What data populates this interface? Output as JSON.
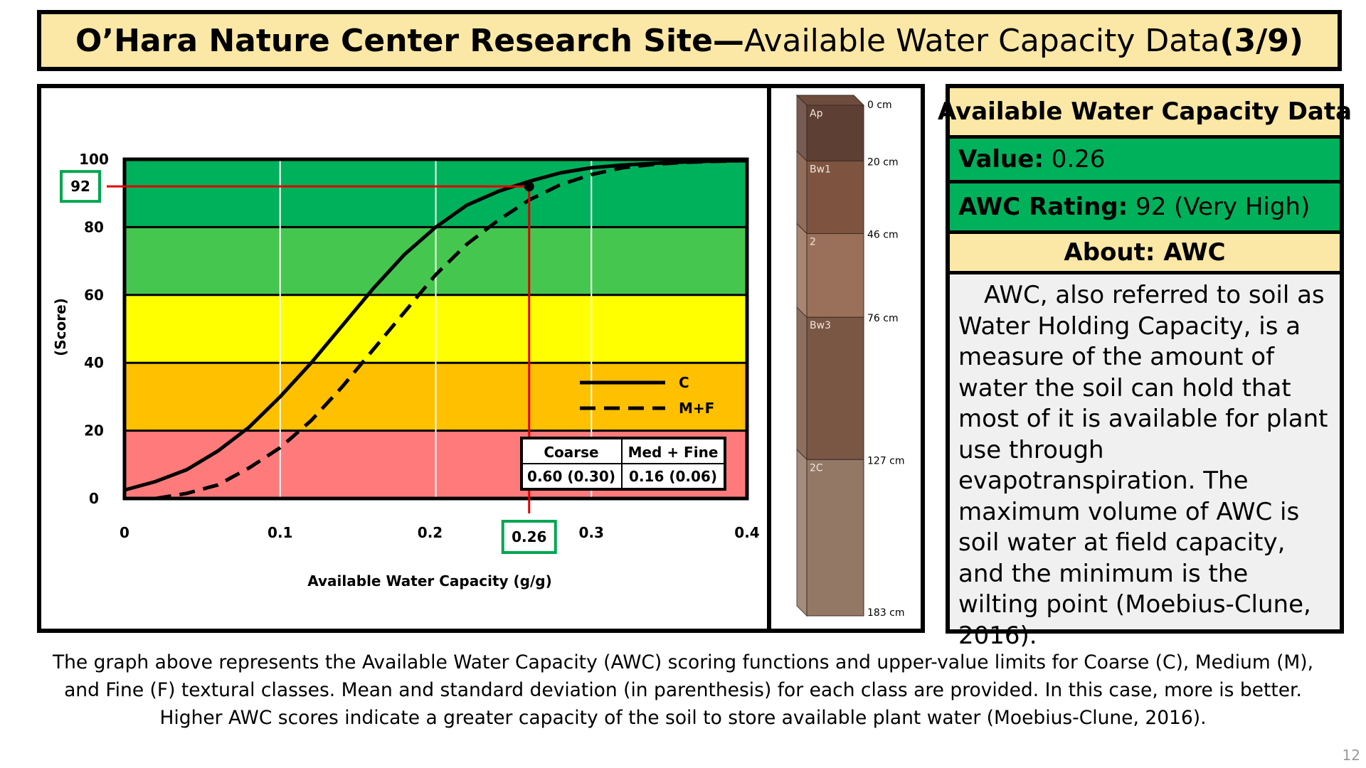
{
  "title": {
    "bold": "O’Hara Nature Center Research Site—",
    "regular": "Available Water Capacity Data ",
    "page": "(3/9)"
  },
  "chart_data": {
    "type": "line",
    "xlabel": "Available Water Capacity (g/g)",
    "ylabel": "(Score)",
    "xlim": [
      0,
      0.4
    ],
    "ylim": [
      0,
      100
    ],
    "x_ticks": [
      "0",
      "0.1",
      "0.2",
      "0.3",
      "0.4"
    ],
    "y_ticks": [
      "0",
      "20",
      "40",
      "60",
      "80",
      "100"
    ],
    "bands": [
      {
        "from": 80,
        "to": 100,
        "color": "#00B15B"
      },
      {
        "from": 60,
        "to": 80,
        "color": "#45C74F"
      },
      {
        "from": 40,
        "to": 60,
        "color": "#FFFF00"
      },
      {
        "from": 20,
        "to": 40,
        "color": "#FFC000"
      },
      {
        "from": 0,
        "to": 20,
        "color": "#FF7B7B"
      }
    ],
    "series": [
      {
        "name": "C",
        "style": "solid",
        "x": [
          0,
          0.02,
          0.04,
          0.06,
          0.08,
          0.1,
          0.12,
          0.14,
          0.16,
          0.18,
          0.2,
          0.22,
          0.24,
          0.26,
          0.28,
          0.3,
          0.32,
          0.34,
          0.36,
          0.38,
          0.4
        ],
        "y": [
          2.5,
          5,
          8.5,
          14,
          21,
          30,
          40,
          51,
          62,
          72,
          80,
          86.5,
          90.5,
          93.5,
          96,
          97.5,
          98.3,
          98.8,
          99.2,
          99.5,
          99.6
        ]
      },
      {
        "name": "M+F",
        "style": "dashed",
        "x": [
          0.02,
          0.04,
          0.06,
          0.08,
          0.1,
          0.12,
          0.14,
          0.16,
          0.18,
          0.2,
          0.22,
          0.24,
          0.26,
          0.28,
          0.3,
          0.32,
          0.34,
          0.36,
          0.38,
          0.4
        ],
        "y": [
          0,
          1.5,
          4,
          9,
          15,
          23,
          33,
          44,
          55,
          66,
          75,
          82,
          88,
          92.5,
          95.5,
          97.5,
          98.5,
          99.1,
          99.4,
          99.6
        ]
      }
    ],
    "highlight": {
      "x": 0.26,
      "y": 92,
      "x_label": "0.26",
      "y_label": "92",
      "color": "#E00000",
      "box_color": "#00A651"
    },
    "stats_table": {
      "headers": [
        "Coarse",
        "Med + Fine"
      ],
      "values": [
        "0.60 (0.30)",
        "0.16 (0.06)"
      ]
    },
    "legend": [
      {
        "label": "C",
        "style": "solid"
      },
      {
        "label": "M+F",
        "style": "dashed"
      }
    ]
  },
  "soil_profile": {
    "horizons": [
      {
        "name": "Ap",
        "color": "#5E3F33",
        "from_cm": 0,
        "to_cm": 20
      },
      {
        "name": "Bw1",
        "color": "#7E5440",
        "from_cm": 20,
        "to_cm": 46
      },
      {
        "name": "2",
        "color": "#9A705A",
        "from_cm": 46,
        "to_cm": 76
      },
      {
        "name": "Bw3",
        "color": "#7A5745",
        "from_cm": 76,
        "to_cm": 127
      },
      {
        "name": "2C",
        "color": "#947866",
        "from_cm": 127,
        "to_cm": 183
      }
    ],
    "depth_labels": [
      "0 cm",
      "20 cm",
      "46 cm",
      "76 cm",
      "127 cm",
      "183 cm"
    ]
  },
  "info": {
    "heading": "Available Water Capacity Data",
    "value_label": "Value:",
    "value": " 0.26",
    "rating_label": "AWC Rating:",
    "rating": " 92 (Very High)",
    "about": "About: AWC",
    "body": "AWC, also referred to soil as Water Holding Capacity, is a measure of the amount of water the soil can hold that most of it is available for plant use through evapotranspiration. The maximum volume of AWC is soil water at field capacity, and the minimum is the wilting point (Moebius-Clune, 2016).",
    "colors": {
      "cream": "#FCE8A6",
      "green": "#00B15B",
      "gray": "#F0F0F0"
    }
  },
  "caption": "The graph above represents the Available Water Capacity (AWC) scoring functions and upper-value limits for Coarse (C), Medium (M), and Fine (F) textural classes. Mean and standard deviation (in parenthesis) for each class are provided. In this case, more is better. Higher AWC scores indicate a greater capacity of the soil to store available plant water (Moebius-Clune, 2016).",
  "page_number": "12"
}
